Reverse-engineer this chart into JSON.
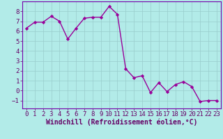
{
  "x": [
    0,
    1,
    2,
    3,
    4,
    5,
    6,
    7,
    8,
    9,
    10,
    11,
    12,
    13,
    14,
    15,
    16,
    17,
    18,
    19,
    20,
    21,
    22,
    23
  ],
  "y": [
    6.3,
    6.9,
    6.9,
    7.5,
    7.0,
    5.2,
    6.3,
    7.3,
    7.4,
    7.4,
    8.5,
    7.7,
    2.2,
    1.3,
    1.5,
    -0.2,
    0.8,
    -0.1,
    0.6,
    0.9,
    0.4,
    -1.1,
    -1.0,
    -1.0
  ],
  "line_color": "#990099",
  "marker": "D",
  "marker_size": 2.2,
  "bg_color": "#b2ebe8",
  "grid_color": "#99cccc",
  "xlabel": "Windchill (Refroidissement éolien,°C)",
  "xlim": [
    -0.5,
    23.5
  ],
  "ylim": [
    -1.8,
    9.0
  ],
  "yticks": [
    -1,
    0,
    1,
    2,
    3,
    4,
    5,
    6,
    7,
    8
  ],
  "xticks": [
    0,
    1,
    2,
    3,
    4,
    5,
    6,
    7,
    8,
    9,
    10,
    11,
    12,
    13,
    14,
    15,
    16,
    17,
    18,
    19,
    20,
    21,
    22,
    23
  ],
  "xlabel_color": "#660066",
  "tick_color": "#660066",
  "spine_color": "#7700aa",
  "xlabel_fontsize": 7.0,
  "tick_fontsize": 6.5,
  "line_width": 1.0
}
